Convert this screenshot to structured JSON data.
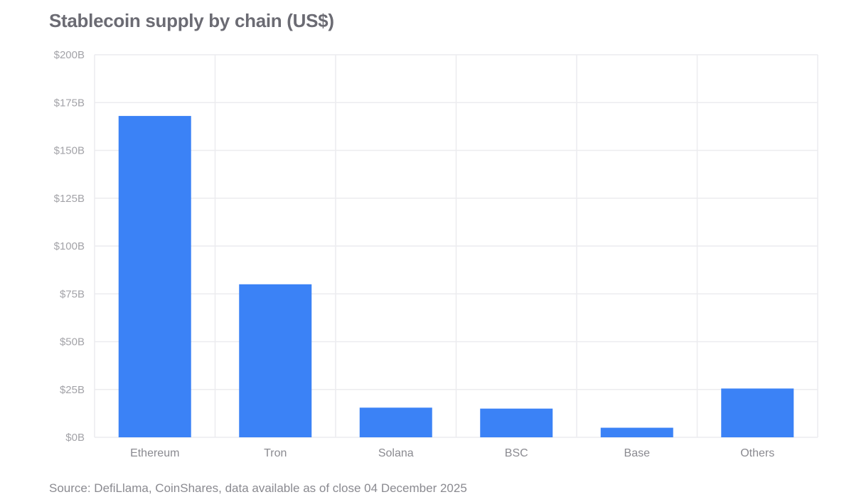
{
  "chart_data": {
    "type": "bar",
    "title": "Stablecoin supply by chain (US$)",
    "categories": [
      "Ethereum",
      "Tron",
      "Solana",
      "BSC",
      "Base",
      "Others"
    ],
    "values": [
      168,
      80,
      15.5,
      15,
      5,
      25.5
    ],
    "unit": "US$ billions",
    "ylim": [
      0,
      200
    ],
    "yticks": [
      0,
      25,
      50,
      75,
      100,
      125,
      150,
      175,
      200
    ],
    "ytick_labels": [
      "$0B",
      "$25B",
      "$50B",
      "$75B",
      "$100B",
      "$125B",
      "$150B",
      "$175B",
      "$200B"
    ],
    "xlabel": "",
    "ylabel": "",
    "grid": true,
    "bar_color": "#3b82f6",
    "source": "Source: DefiLlama, CoinShares, data available as of close 04 December 2025"
  }
}
